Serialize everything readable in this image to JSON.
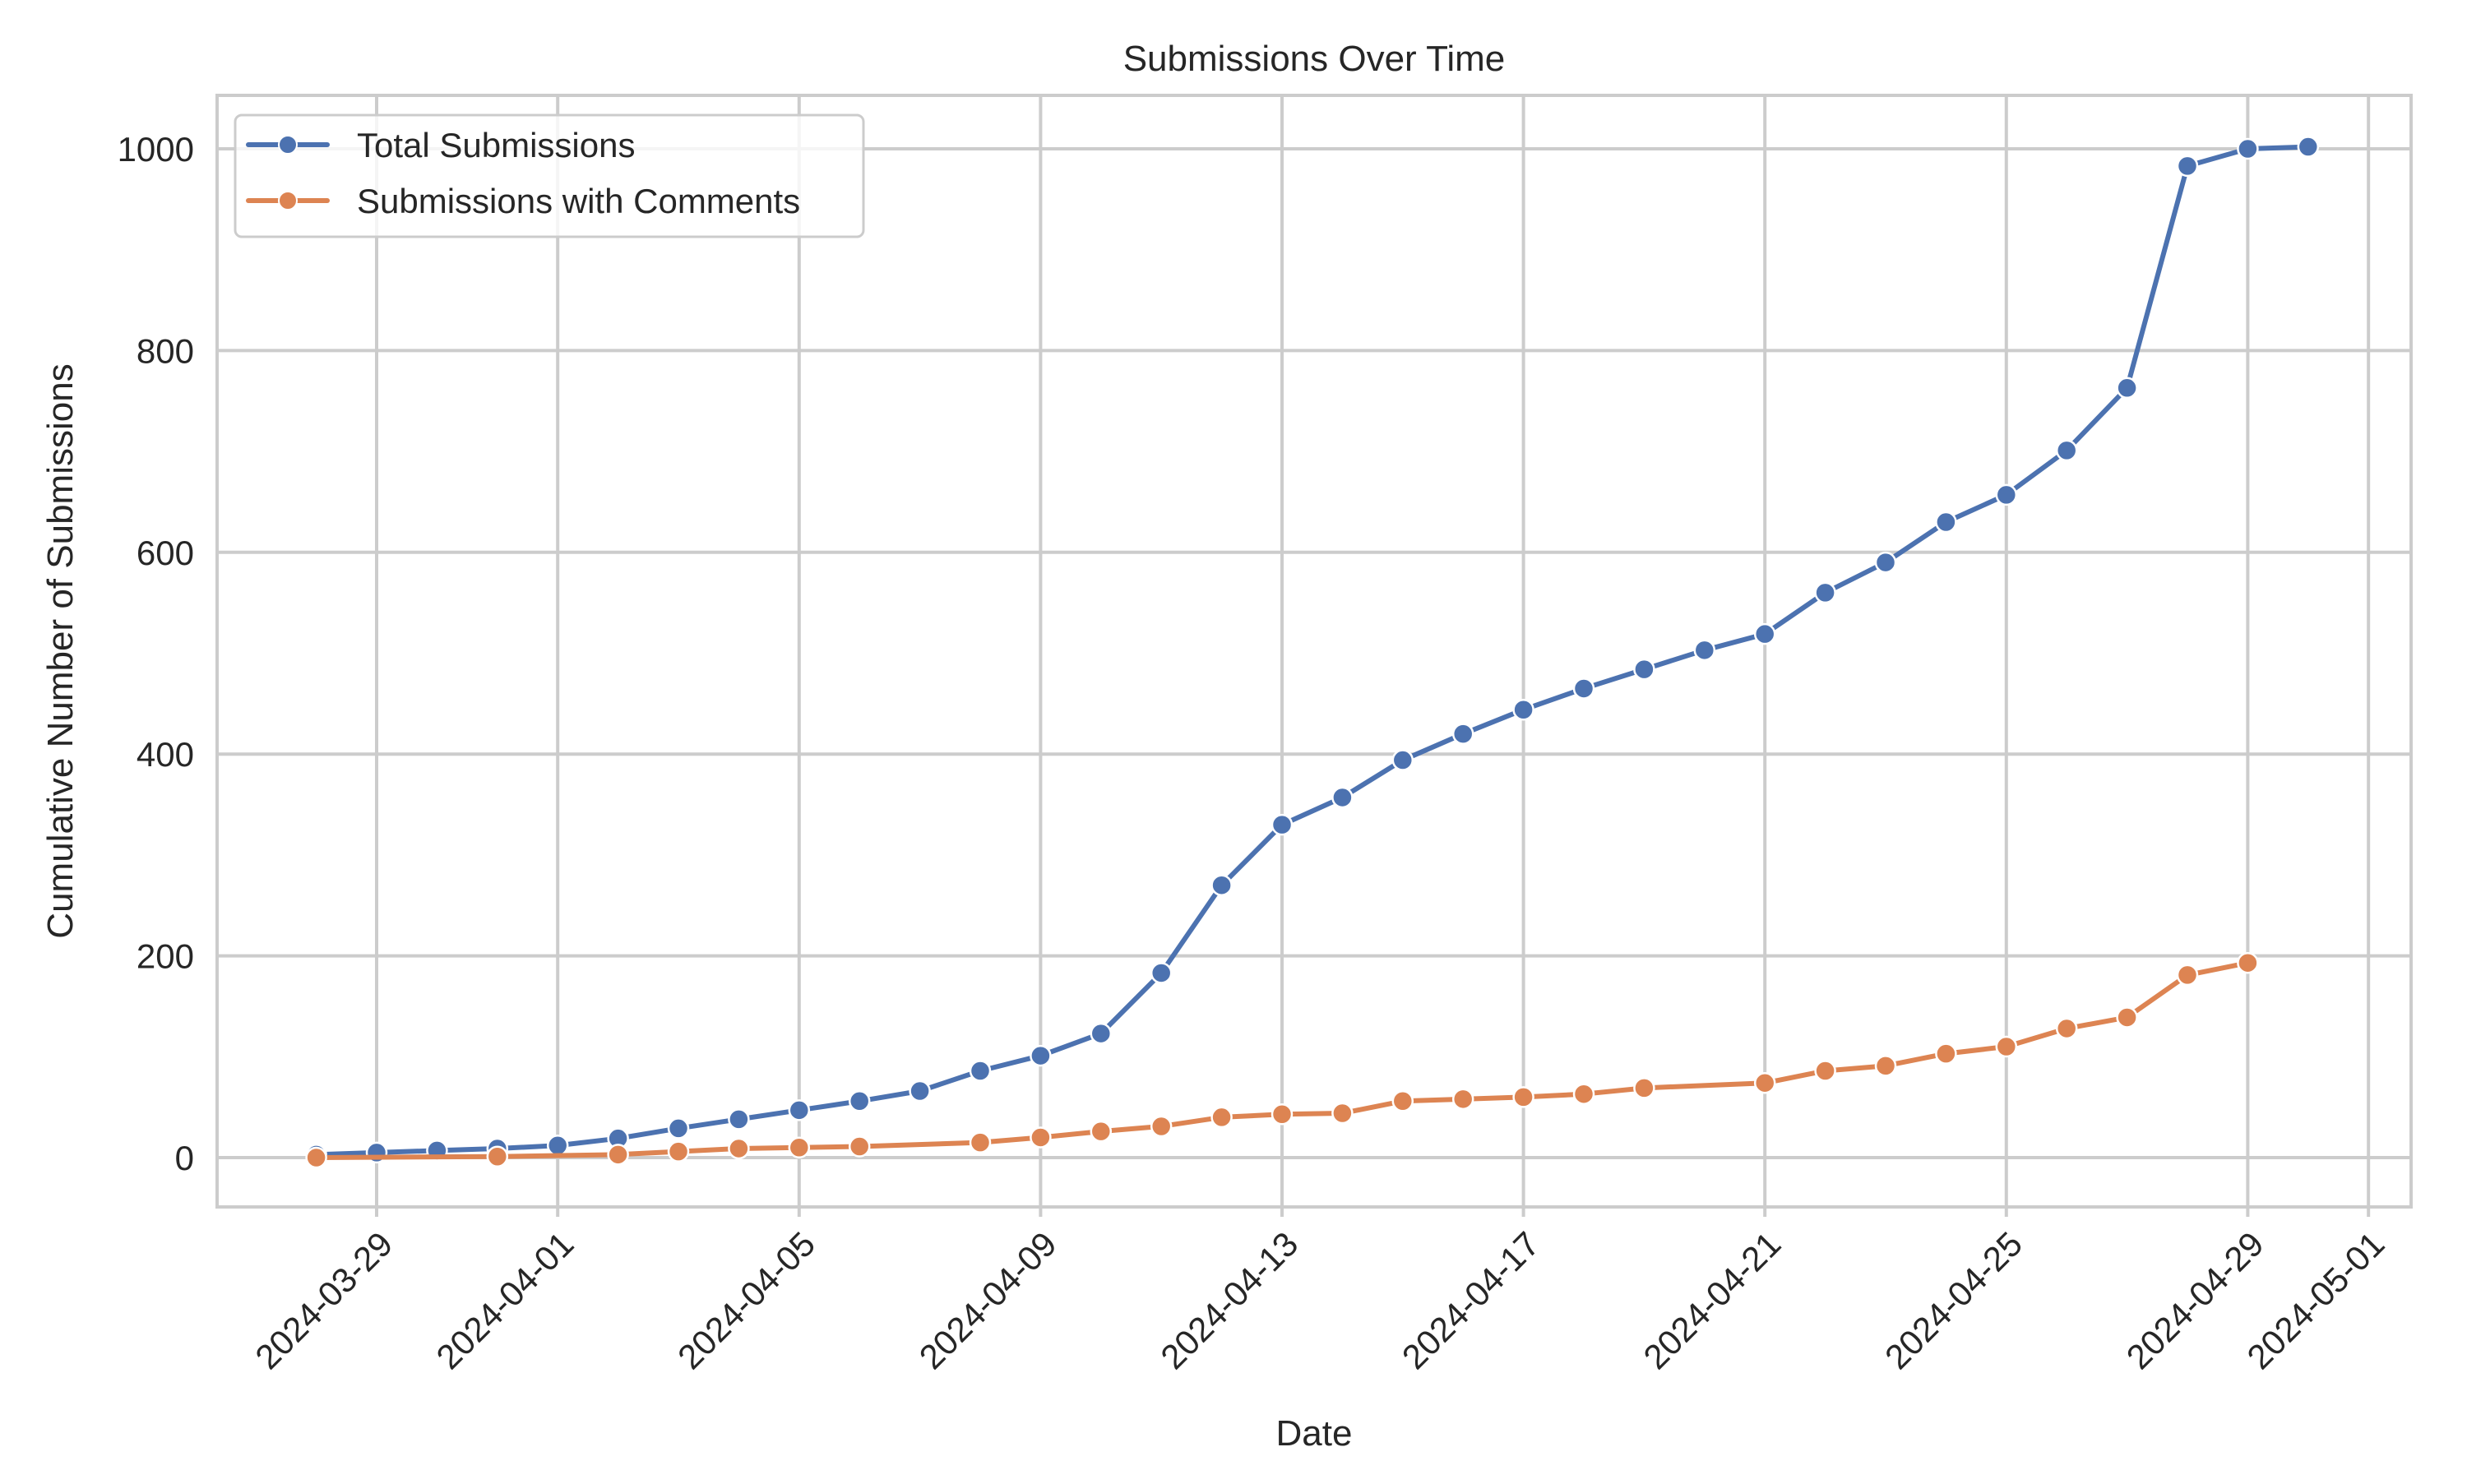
{
  "colors": {
    "total": "#4c72b0",
    "comments": "#dd8452",
    "grid": "#cccccc",
    "text": "#262626"
  },
  "chart_data": {
    "type": "line",
    "title": "Submissions Over Time",
    "xlabel": "Date",
    "ylabel": "Cumulative Number of Submissions",
    "ylim": [
      -50,
      1050
    ],
    "yticks": [
      0,
      200,
      400,
      600,
      800,
      1000
    ],
    "xticks": [
      "2024-03-29",
      "2024-04-01",
      "2024-04-05",
      "2024-04-09",
      "2024-04-13",
      "2024-04-17",
      "2024-04-21",
      "2024-04-25",
      "2024-04-29",
      "2024-05-01"
    ],
    "xlim": [
      "2024-03-26",
      "2024-05-01"
    ],
    "grid": true,
    "legend_position": "upper left",
    "series": [
      {
        "name": "Total Submissions",
        "color": "#4c72b0",
        "x": [
          "2024-03-28",
          "2024-03-29",
          "2024-03-30",
          "2024-03-31",
          "2024-04-01",
          "2024-04-02",
          "2024-04-03",
          "2024-04-04",
          "2024-04-05",
          "2024-04-06",
          "2024-04-07",
          "2024-04-08",
          "2024-04-09",
          "2024-04-10",
          "2024-04-11",
          "2024-04-12",
          "2024-04-13",
          "2024-04-14",
          "2024-04-15",
          "2024-04-16",
          "2024-04-17",
          "2024-04-18",
          "2024-04-19",
          "2024-04-20",
          "2024-04-21",
          "2024-04-22",
          "2024-04-23",
          "2024-04-24",
          "2024-04-25",
          "2024-04-26",
          "2024-04-27",
          "2024-04-28",
          "2024-04-29",
          "2024-04-30"
        ],
        "values": [
          3,
          5,
          7,
          9,
          12,
          19,
          29,
          38,
          47,
          56,
          66,
          86,
          101,
          123,
          183,
          270,
          330,
          357,
          394,
          420,
          444,
          465,
          484,
          503,
          519,
          560,
          590,
          630,
          657,
          701,
          763,
          983,
          1000,
          1002
        ]
      },
      {
        "name": "Submissions with Comments",
        "color": "#dd8452",
        "x": [
          "2024-03-28",
          "2024-03-31",
          "2024-04-02",
          "2024-04-03",
          "2024-04-04",
          "2024-04-05",
          "2024-04-06",
          "2024-04-08",
          "2024-04-09",
          "2024-04-10",
          "2024-04-11",
          "2024-04-12",
          "2024-04-13",
          "2024-04-14",
          "2024-04-15",
          "2024-04-16",
          "2024-04-17",
          "2024-04-18",
          "2024-04-19",
          "2024-04-21",
          "2024-04-22",
          "2024-04-23",
          "2024-04-24",
          "2024-04-25",
          "2024-04-26",
          "2024-04-27",
          "2024-04-28",
          "2024-04-29"
        ],
        "values": [
          0,
          1,
          3,
          6,
          9,
          10,
          11,
          15,
          20,
          26,
          31,
          40,
          43,
          44,
          56,
          58,
          60,
          63,
          69,
          74,
          86,
          91,
          103,
          110,
          128,
          139,
          181,
          193
        ]
      }
    ]
  }
}
